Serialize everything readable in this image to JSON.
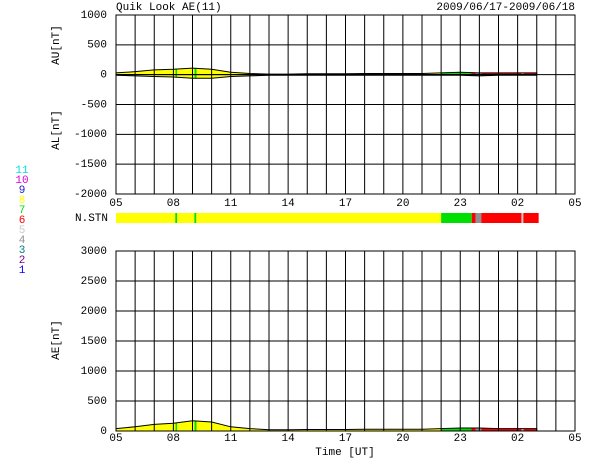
{
  "chart_data": {
    "type": "area",
    "title": "Quik Look AE(11)",
    "date_range": "2009/06/17-2009/06/18",
    "xlabel": "Time [UT]",
    "xlim": [
      0,
      24
    ],
    "xticks": [
      {
        "value": 0,
        "label": "05"
      },
      {
        "value": 3,
        "label": "08"
      },
      {
        "value": 6,
        "label": "11"
      },
      {
        "value": 9,
        "label": "14"
      },
      {
        "value": 12,
        "label": "17"
      },
      {
        "value": 15,
        "label": "20"
      },
      {
        "value": 18,
        "label": "23"
      },
      {
        "value": 21,
        "label": "02"
      },
      {
        "value": 24,
        "label": "05"
      }
    ],
    "xgrid": [
      0,
      1,
      2,
      3,
      4,
      5,
      6,
      7,
      8,
      9,
      10,
      11,
      12,
      13,
      14,
      15,
      16,
      17,
      18,
      19,
      20,
      21,
      22,
      23,
      24
    ],
    "x": [
      0,
      1,
      2,
      3,
      4,
      5,
      6,
      7,
      8,
      9,
      10,
      11,
      12,
      13,
      14,
      15,
      16,
      17,
      18,
      19,
      20,
      21,
      22
    ],
    "panels": [
      {
        "ylabels": [
          "AU[nT]",
          "AL[nT]"
        ],
        "ylim": [
          -2000,
          1000
        ],
        "yticks": [
          1000,
          500,
          0,
          -500,
          -1000,
          -1500,
          -2000
        ],
        "series": [
          {
            "values": [
              30,
              50,
              80,
              90,
              110,
              90,
              40,
              20,
              10,
              10,
              15,
              15,
              15,
              20,
              20,
              20,
              20,
              30,
              40,
              30,
              30,
              30,
              30
            ]
          },
          {
            "values": [
              -10,
              -20,
              -30,
              -40,
              -60,
              -60,
              -30,
              -20,
              -10,
              -10,
              -10,
              -10,
              -10,
              -10,
              -10,
              -10,
              -10,
              -10,
              -10,
              -20,
              -10,
              -10,
              -10
            ]
          }
        ]
      },
      {
        "ylabels": [
          "AE[nT]"
        ],
        "ylim": [
          0,
          3000
        ],
        "yticks": [
          3000,
          2500,
          2000,
          1500,
          1000,
          500,
          0
        ],
        "series": [
          {
            "values": [
              40,
              70,
              110,
              130,
              170,
              150,
              70,
              40,
              20,
              20,
              25,
              25,
              25,
              30,
              30,
              30,
              30,
              40,
              50,
              50,
              40,
              40,
              40
            ]
          }
        ]
      }
    ],
    "stations": {
      "label": "N.STN",
      "start": [
        0,
        3.1,
        3.2,
        4.1,
        4.2,
        17,
        18.6,
        18.8,
        19.1,
        21.2,
        21.3
      ],
      "end": [
        3.1,
        3.2,
        4.1,
        4.2,
        17,
        18.6,
        18.8,
        19.1,
        21.2,
        21.3,
        22.1
      ],
      "values": [
        8,
        7,
        8,
        7,
        8,
        7,
        6,
        4,
        6,
        5,
        6
      ]
    },
    "station_legend": {
      "counts": [
        11,
        10,
        9,
        8,
        7,
        6,
        5,
        4,
        3,
        2,
        1
      ],
      "colors": [
        "#00e0e0",
        "#e000e0",
        "#2020c0",
        "#ffff00",
        "#00e000",
        "#ff0000",
        "#c8c8c8",
        "#909090",
        "#008080",
        "#800080",
        "#0000ff"
      ]
    }
  }
}
